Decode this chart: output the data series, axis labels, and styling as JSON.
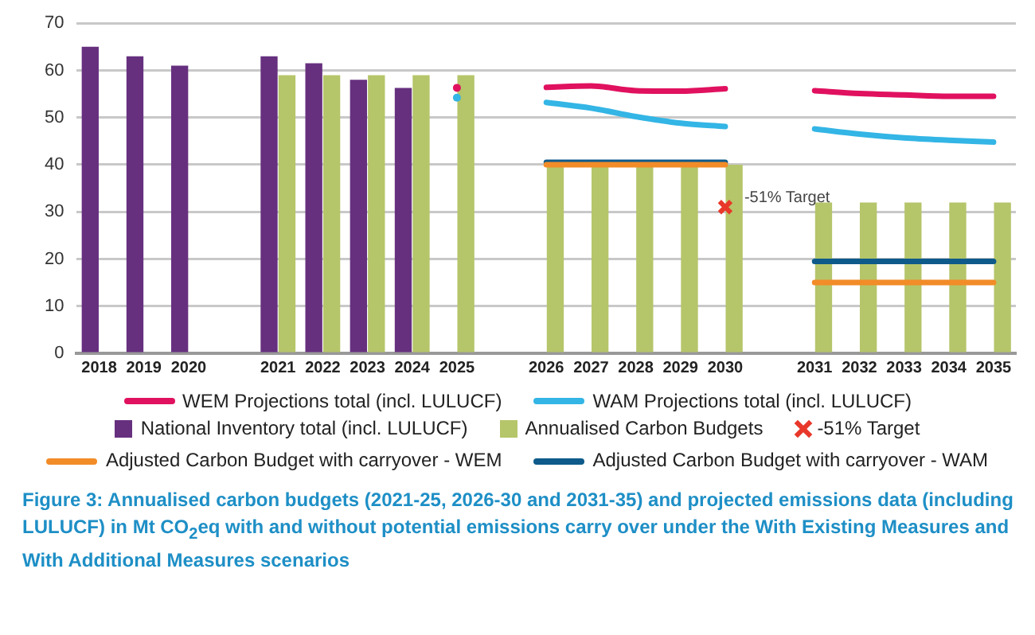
{
  "chart_data": {
    "type": "bar",
    "title": "Figure 3: Annualised carbon budgets (2021-25, 2026-30 and 2031-35) and projected emissions data (including LULUCF) in Mt CO$_{2}$eq with and without potential emissions carry over under the With Existing Measures and With Additional Measures scenarios",
    "categories": [
      "2018",
      "2019",
      "2020",
      null,
      "2021",
      "2022",
      "2023",
      "2024",
      "2025",
      null,
      "2026",
      "2027",
      "2028",
      "2029",
      "2030",
      null,
      "2031",
      "2032",
      "2033",
      "2034",
      "2035"
    ],
    "series": [
      {
        "name": "WEM Projections total (incl. LULUCF)",
        "type": "line",
        "color": "#e0115f",
        "values": [
          null,
          null,
          null,
          null,
          null,
          null,
          null,
          null,
          56.3,
          null,
          56.4,
          56.7,
          55.7,
          55.6,
          56.1,
          null,
          55.7,
          55.1,
          54.8,
          54.5,
          54.5
        ]
      },
      {
        "name": "WAM Projections total (incl. LULUCF)",
        "type": "line",
        "color": "#33b5e5",
        "values": [
          null,
          null,
          null,
          null,
          null,
          null,
          null,
          null,
          54.2,
          null,
          53.2,
          52.0,
          50.2,
          48.8,
          48.1,
          null,
          47.6,
          46.5,
          45.7,
          45.2,
          44.8
        ]
      },
      {
        "name": "National Inventory total (incl. LULUCF)",
        "type": "bar",
        "color": "#66307f",
        "values": [
          65,
          63,
          61,
          null,
          63,
          61.5,
          58,
          56.3,
          null,
          null,
          null,
          null,
          null,
          null,
          null,
          null,
          null,
          null,
          null,
          null,
          null
        ]
      },
      {
        "name": "Annualised Carbon Budgets",
        "type": "bar",
        "color": "#b5c56a",
        "values": [
          null,
          null,
          null,
          null,
          59,
          59,
          59,
          59,
          59,
          null,
          40,
          40,
          40,
          40,
          40,
          null,
          32,
          32,
          32,
          32,
          32
        ]
      },
      {
        "name": "-51% Target",
        "type": "scatter",
        "marker": "cross",
        "color": "#e8382a",
        "values": [
          null,
          null,
          null,
          null,
          null,
          null,
          null,
          null,
          null,
          null,
          null,
          null,
          null,
          null,
          31,
          null,
          null,
          null,
          null,
          null,
          null
        ]
      },
      {
        "name": "Adjusted Carbon Budget with carryover - WEM",
        "type": "line",
        "color": "#f28c28",
        "values": [
          null,
          null,
          null,
          null,
          null,
          null,
          null,
          null,
          null,
          null,
          40,
          40,
          40,
          40,
          40,
          null,
          15,
          15,
          15,
          15,
          15
        ]
      },
      {
        "name": "Adjusted Carbon Budget with carryover - WAM",
        "type": "line",
        "color": "#0e5a8a",
        "values": [
          null,
          null,
          null,
          null,
          null,
          null,
          null,
          null,
          null,
          null,
          40.5,
          40.5,
          40.5,
          40.5,
          40.5,
          null,
          19.5,
          19.5,
          19.5,
          19.5,
          19.5
        ]
      }
    ],
    "annotations": [
      {
        "text": "-51% Target",
        "x": "2030",
        "y": 31
      }
    ],
    "ylim": [
      0,
      70
    ],
    "yticks": [
      0,
      10,
      20,
      30,
      40,
      50,
      60,
      70
    ],
    "grid": "y",
    "legend": "bottom"
  }
}
